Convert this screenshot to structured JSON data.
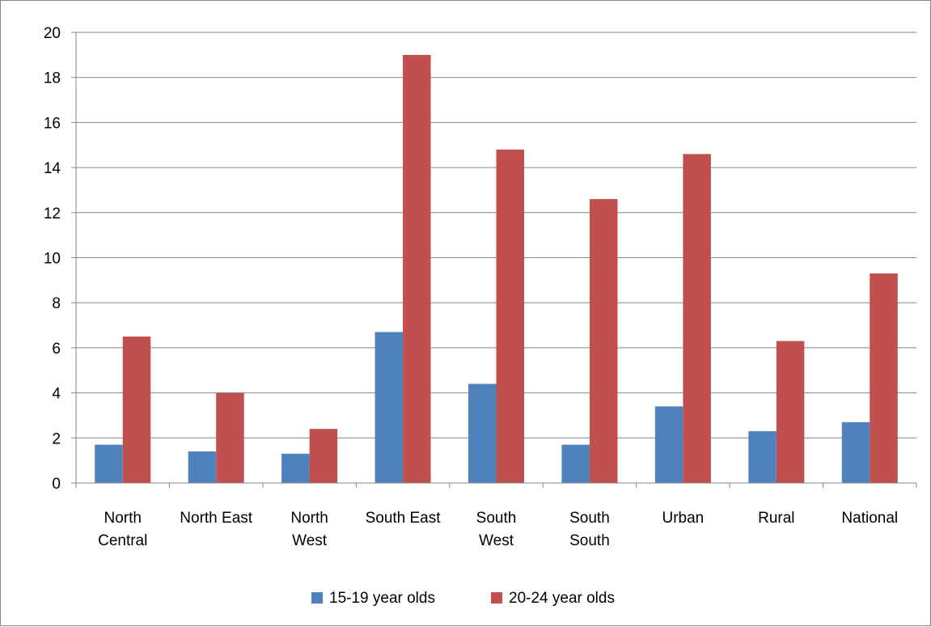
{
  "chart_data": {
    "type": "bar",
    "categories": [
      [
        "North",
        "Central"
      ],
      [
        "North East"
      ],
      [
        "North",
        "West"
      ],
      [
        "South East"
      ],
      [
        "South",
        "West"
      ],
      [
        "South",
        "South"
      ],
      [
        "Urban"
      ],
      [
        "Rural"
      ],
      [
        "National"
      ]
    ],
    "series": [
      {
        "name": "15-19 year olds",
        "color": "#4f81bd",
        "values": [
          1.7,
          1.4,
          1.3,
          6.7,
          4.4,
          1.7,
          3.4,
          2.3,
          2.7
        ]
      },
      {
        "name": "20-24 year olds",
        "color": "#c0504d",
        "values": [
          6.5,
          4.0,
          2.4,
          19.0,
          14.8,
          12.6,
          14.6,
          6.3,
          9.3
        ]
      }
    ],
    "ylim": [
      0,
      20
    ],
    "yticks": [
      0,
      2,
      4,
      6,
      8,
      10,
      12,
      14,
      16,
      18,
      20
    ],
    "grid": true,
    "legend_position": "bottom",
    "title": "",
    "xlabel": "",
    "ylabel": ""
  }
}
